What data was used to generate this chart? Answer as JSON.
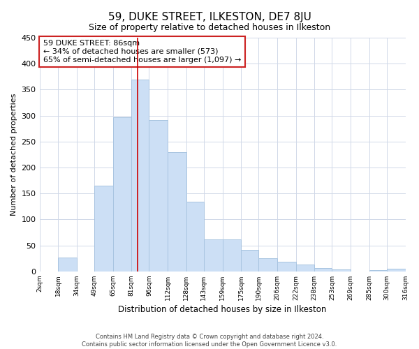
{
  "title": "59, DUKE STREET, ILKESTON, DE7 8JU",
  "subtitle": "Size of property relative to detached houses in Ilkeston",
  "xlabel": "Distribution of detached houses by size in Ilkeston",
  "ylabel": "Number of detached properties",
  "bar_color": "#ccdff5",
  "bar_edge_color": "#a8c4e0",
  "marker_line_color": "#cc0000",
  "marker_value": 86,
  "bins": [
    2,
    18,
    34,
    49,
    65,
    81,
    96,
    112,
    128,
    143,
    159,
    175,
    190,
    206,
    222,
    238,
    253,
    269,
    285,
    300,
    316
  ],
  "counts": [
    0,
    27,
    0,
    165,
    297,
    370,
    291,
    230,
    134,
    61,
    61,
    42,
    25,
    19,
    13,
    6,
    4,
    0,
    3,
    5
  ],
  "tick_labels": [
    "2sqm",
    "18sqm",
    "34sqm",
    "49sqm",
    "65sqm",
    "81sqm",
    "96sqm",
    "112sqm",
    "128sqm",
    "143sqm",
    "159sqm",
    "175sqm",
    "190sqm",
    "206sqm",
    "222sqm",
    "238sqm",
    "253sqm",
    "269sqm",
    "285sqm",
    "300sqm",
    "316sqm"
  ],
  "annotation_title": "59 DUKE STREET: 86sqm",
  "annotation_line1": "← 34% of detached houses are smaller (573)",
  "annotation_line2": "65% of semi-detached houses are larger (1,097) →",
  "ylim": [
    0,
    450
  ],
  "yticks": [
    0,
    50,
    100,
    150,
    200,
    250,
    300,
    350,
    400,
    450
  ],
  "footer_line1": "Contains HM Land Registry data © Crown copyright and database right 2024.",
  "footer_line2": "Contains public sector information licensed under the Open Government Licence v3.0.",
  "background_color": "#ffffff",
  "grid_color": "#d0d8e8"
}
